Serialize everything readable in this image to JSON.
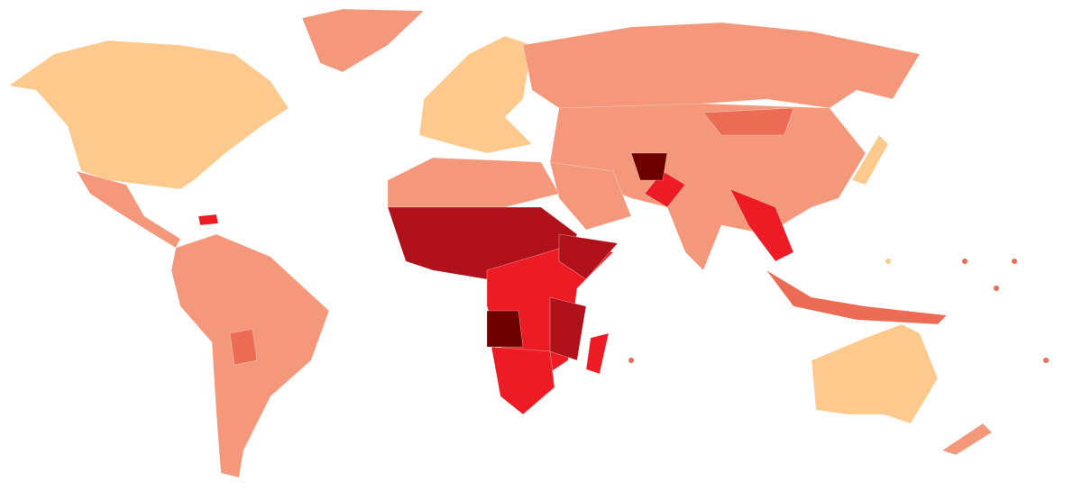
{
  "map": {
    "palette": [
      "#fdc98c",
      "#f4977a",
      "#ec6b55",
      "#ed1c24",
      "#b0111a",
      "#6e0000"
    ],
    "background": "#ffffff"
  }
}
